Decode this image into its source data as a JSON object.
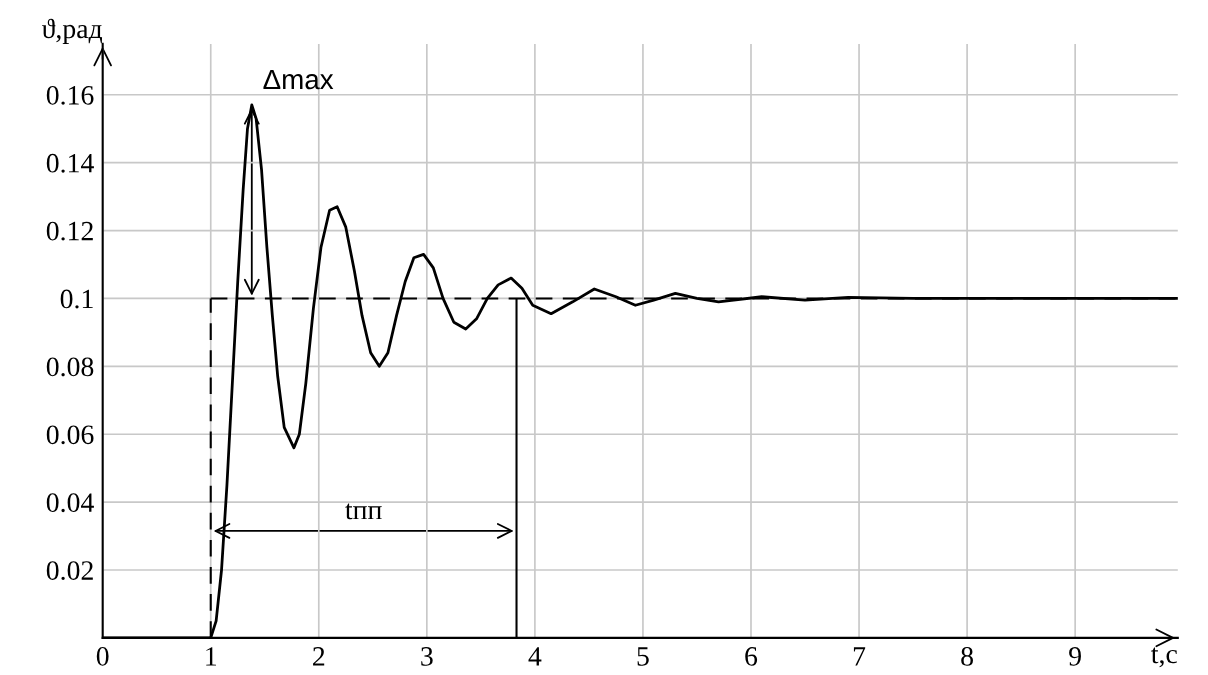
{
  "chart_data": {
    "type": "line",
    "xlabel": "t,с",
    "ylabel": "ϑ,рад",
    "x": [
      0,
      1.0,
      1.05,
      1.1,
      1.15,
      1.2,
      1.25,
      1.3,
      1.34,
      1.38,
      1.42,
      1.47,
      1.52,
      1.57,
      1.62,
      1.68,
      1.77,
      1.82,
      1.88,
      1.95,
      2.02,
      2.1,
      2.17,
      2.25,
      2.33,
      2.4,
      2.48,
      2.56,
      2.64,
      2.72,
      2.8,
      2.88,
      2.97,
      3.06,
      3.15,
      3.25,
      3.36,
      3.46,
      3.56,
      3.66,
      3.78,
      3.88,
      3.98,
      4.15,
      4.35,
      4.55,
      4.75,
      4.93,
      5.1,
      5.3,
      5.5,
      5.7,
      6.1,
      6.5,
      6.9,
      7.5,
      9.95
    ],
    "series": [
      {
        "color": "#000000",
        "values": [
          0,
          0,
          0.005,
          0.02,
          0.045,
          0.075,
          0.105,
          0.132,
          0.15,
          0.157,
          0.153,
          0.138,
          0.115,
          0.095,
          0.077,
          0.062,
          0.056,
          0.06,
          0.075,
          0.097,
          0.115,
          0.126,
          0.127,
          0.121,
          0.108,
          0.095,
          0.084,
          0.08,
          0.084,
          0.095,
          0.105,
          0.112,
          0.113,
          0.109,
          0.1,
          0.093,
          0.091,
          0.094,
          0.1,
          0.104,
          0.106,
          0.103,
          0.098,
          0.0955,
          0.099,
          0.1028,
          0.1005,
          0.098,
          0.0995,
          0.1015,
          0.1,
          0.099,
          0.1005,
          0.0995,
          0.1003,
          0.1,
          0.1
        ]
      }
    ],
    "xlim": [
      0,
      9.95
    ],
    "ylim": [
      0,
      0.175
    ],
    "xticks": [
      0,
      1,
      2,
      3,
      4,
      5,
      6,
      7,
      8,
      9
    ],
    "yticks": [
      0.02,
      0.04,
      0.06,
      0.08,
      0.1,
      0.12,
      0.14,
      0.16
    ],
    "grid": true,
    "marker": "none",
    "line_style": "solid",
    "ref_lines": [
      {
        "axis": "y",
        "value": 0.1,
        "line_style": "dashed",
        "color": "#000000"
      },
      {
        "axis": "x",
        "value": 1,
        "line_style": "dashed",
        "color": "#000000"
      },
      {
        "axis": "x",
        "value": 3.83,
        "line_style": "solid",
        "color": "#000000"
      }
    ],
    "annotations": [
      {
        "text": "Δmax",
        "x": 1.38,
        "y": 0.157
      },
      "tпп"
    ]
  }
}
